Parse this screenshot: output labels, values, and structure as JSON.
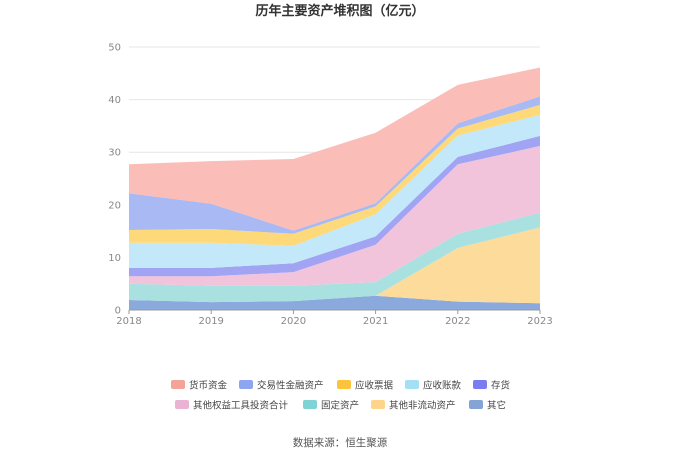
{
  "chart_data": {
    "type": "area",
    "stacked": true,
    "title": "历年主要资产堆积图（亿元）",
    "x": [
      "2018",
      "2019",
      "2020",
      "2021",
      "2022",
      "2023"
    ],
    "ylim": [
      0,
      50
    ],
    "yticks": [
      0,
      10,
      20,
      30,
      40,
      50
    ],
    "grid": true,
    "series": [
      {
        "name": "其它",
        "color": "#8aa9dc",
        "values": [
          1.9,
          1.5,
          1.7,
          2.7,
          1.6,
          1.3
        ]
      },
      {
        "name": "其他非流动资产",
        "color": "#fddc9b",
        "values": [
          0,
          0,
          0,
          0,
          10.2,
          14.4
        ]
      },
      {
        "name": "固定资产",
        "color": "#a9e0e0",
        "values": [
          3.1,
          3.1,
          2.9,
          2.6,
          2.7,
          2.8
        ]
      },
      {
        "name": "其他权益工具投资合计",
        "color": "#f1c4dc",
        "values": [
          1.4,
          1.8,
          2.6,
          7.1,
          13.2,
          12.7
        ]
      },
      {
        "name": "存货",
        "color": "#a1a3f3",
        "values": [
          1.6,
          1.6,
          1.7,
          1.6,
          1.4,
          1.9
        ]
      },
      {
        "name": "应收账款",
        "color": "#c2e8f9",
        "values": [
          4.8,
          4.8,
          3.3,
          4.2,
          4.1,
          4.0
        ]
      },
      {
        "name": "应收票据",
        "color": "#fdd97a",
        "values": [
          2.4,
          2.6,
          2.3,
          1.5,
          1.3,
          1.9
        ]
      },
      {
        "name": "交易性金融资产",
        "color": "#a8b9f3",
        "values": [
          7.0,
          4.8,
          0.6,
          0.6,
          1.0,
          1.6
        ]
      },
      {
        "name": "货币资金",
        "color": "#fbbdb7",
        "values": [
          5.5,
          8.1,
          13.6,
          13.4,
          7.3,
          5.5
        ]
      }
    ]
  },
  "legend": [
    {
      "name": "货币资金",
      "color": "#f4a39a"
    },
    {
      "name": "交易性金融资产",
      "color": "#8ea6f2"
    },
    {
      "name": "应收票据",
      "color": "#fbc43c"
    },
    {
      "name": "应收账款",
      "color": "#a4dff6"
    },
    {
      "name": "存货",
      "color": "#7a7cef"
    },
    {
      "name": "其他权益工具投资合计",
      "color": "#ebb3d3"
    },
    {
      "name": "固定资产",
      "color": "#7ed4d4"
    },
    {
      "name": "其他非流动资产",
      "color": "#fdd48a"
    },
    {
      "name": "其它",
      "color": "#86a3d6"
    }
  ],
  "source": "数据来源：恒生聚源"
}
